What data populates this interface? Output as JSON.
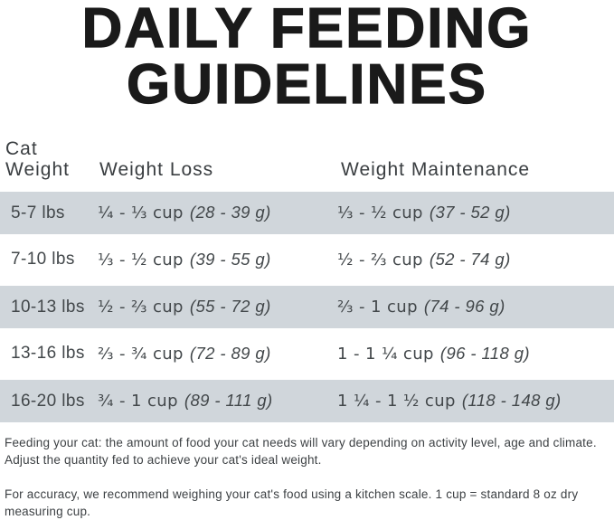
{
  "title": {
    "line1": "DAILY FEEDING",
    "line2": "GUIDELINES"
  },
  "table": {
    "header": {
      "col1_line1": "Cat",
      "col1_line2": "Weight",
      "col2": "Weight Loss",
      "col3": "Weight Maintenance"
    },
    "rows": [
      {
        "weight": "5-7 lbs",
        "loss_cups": "¼ - ⅓ cup",
        "loss_grams": "(28 - 39 g)",
        "maintenance_cups": "⅓ - ½ cup",
        "maintenance_grams": "(37 - 52 g)"
      },
      {
        "weight": "7-10 lbs",
        "loss_cups": "⅓ - ½ cup",
        "loss_grams": "(39 - 55 g)",
        "maintenance_cups": "½ - ⅔ cup",
        "maintenance_grams": "(52 - 74 g)"
      },
      {
        "weight": "10-13 lbs",
        "loss_cups": "½ - ⅔ cup",
        "loss_grams": "(55 - 72 g)",
        "maintenance_cups": "⅔ - 1 cup",
        "maintenance_grams": "(74 - 96 g)"
      },
      {
        "weight": "13-16 lbs",
        "loss_cups": "⅔ - ¾ cup",
        "loss_grams": "(72 - 89 g)",
        "maintenance_cups": "1 - 1 ¼ cup",
        "maintenance_grams": "(96 - 118 g)"
      },
      {
        "weight": "16-20 lbs",
        "loss_cups": "¾ - 1 cup",
        "loss_grams": "(89 - 111 g)",
        "maintenance_cups": "1 ¼ - 1 ½ cup",
        "maintenance_grams": "(118 - 148 g)"
      }
    ]
  },
  "notes": {
    "paragraph1": "Feeding your cat: the amount of food your cat needs will vary depending on activity level, age and climate. Adjust the quantity fed to achieve your cat's ideal weight.",
    "paragraph2": "For accuracy, we recommend weighing your cat's food using a kitchen scale. 1 cup = standard 8 oz dry measuring cup."
  },
  "colors": {
    "row_stripe": "#d0d6db",
    "title_text": "#1a1a1a"
  }
}
